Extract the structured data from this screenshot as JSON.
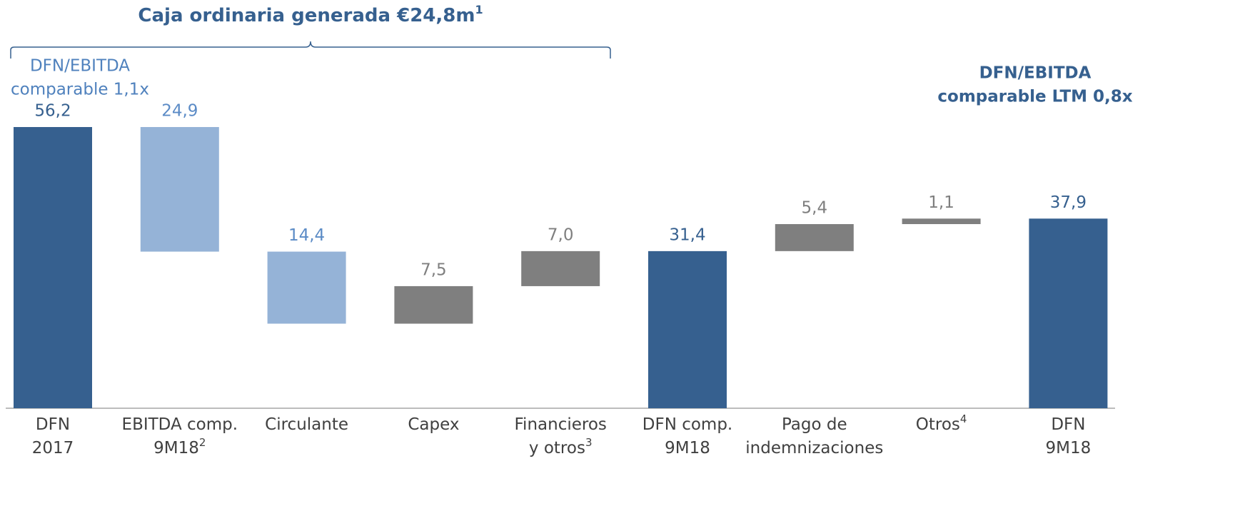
{
  "chart_data": {
    "type": "waterfall",
    "title": "Caja ordinaria generada €24,8m",
    "title_note": "1",
    "annotations": [
      {
        "lines": [
          "DFN/EBITDA",
          "comparable 1,1x"
        ],
        "color": "#4f81bd"
      },
      {
        "lines": [
          "DFN/EBITDA",
          "comparable LTM 0,8x"
        ],
        "color": "#36608f"
      }
    ],
    "categories": [
      [
        "DFN",
        "2017"
      ],
      [
        "EBITDA comp.",
        "9M18"
      ],
      [
        "Circulante"
      ],
      [
        "Capex"
      ],
      [
        "Financieros",
        "y otros"
      ],
      [
        "DFN comp.",
        "9M18"
      ],
      [
        "Pago de",
        "indemnizaciones"
      ],
      [
        "Otros"
      ],
      [
        "DFN",
        "9M18"
      ]
    ],
    "category_notes": [
      null,
      "2",
      null,
      null,
      "3",
      null,
      null,
      "4",
      null
    ],
    "measure": [
      "absolute",
      "relative",
      "relative",
      "relative",
      "relative",
      "absolute",
      "relative",
      "relative",
      "absolute"
    ],
    "values": [
      56.2,
      -24.9,
      -14.4,
      7.5,
      7.0,
      31.4,
      5.4,
      1.1,
      37.9
    ],
    "value_labels": [
      "56,2",
      "24,9",
      "14,4",
      "7,5",
      "7,0",
      "31,4",
      "5,4",
      "1,1",
      "37,9"
    ],
    "colors": [
      "#36608f",
      "#95b3d7",
      "#95b3d7",
      "#7f7f7f",
      "#7f7f7f",
      "#36608f",
      "#7f7f7f",
      "#7f7f7f",
      "#36608f"
    ],
    "label_colors": [
      "#36608f",
      "#5b8bc6",
      "#5b8bc6",
      "#7f7f7f",
      "#7f7f7f",
      "#36608f",
      "#7f7f7f",
      "#7f7f7f",
      "#36608f"
    ]
  }
}
